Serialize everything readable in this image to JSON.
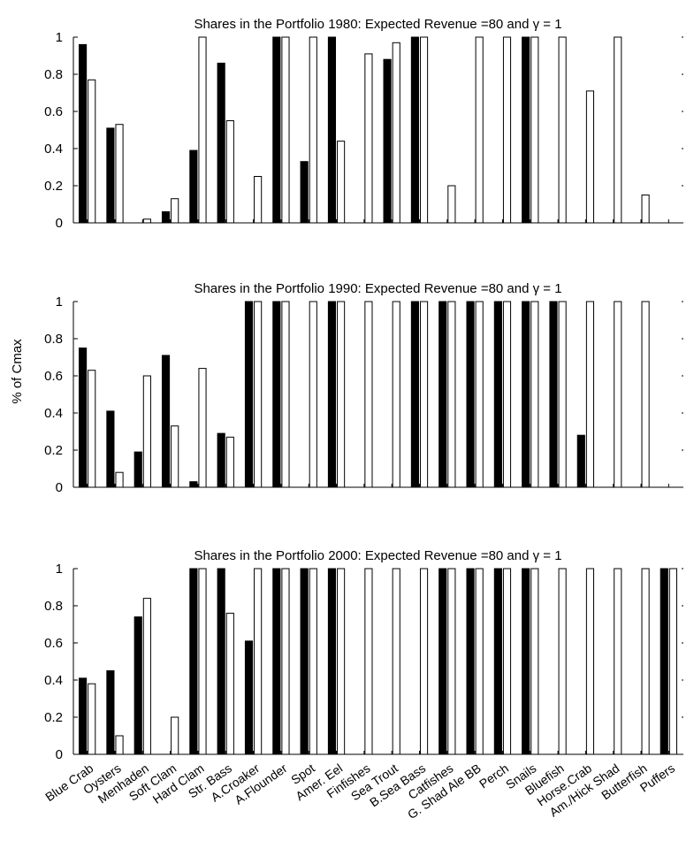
{
  "figure": {
    "ylabel": "% of Cmax"
  },
  "chart_data": [
    {
      "type": "bar",
      "title": "Shares in the Portfolio 1980: Expected Revenue =80 and γ = 1",
      "ylim": [
        0,
        1
      ],
      "yticks": [
        "0",
        "0.2",
        "0.4",
        "0.6",
        "0.8",
        "1"
      ],
      "categories": [
        "Blue Crab",
        "Oysters",
        "Menhaden",
        "Soft Clam",
        "Hard Clam",
        "Str. Bass",
        "A.Croaker",
        "A.Flounder",
        "Spot",
        "Amer. Eel",
        "Finfishes",
        "Sea Trout",
        "B.Sea Bass",
        "Catfishes",
        "G. Shad Ale BB",
        "Perch",
        "Snails",
        "Bluefish",
        "Horse.Crab",
        "Am./Hick Shad",
        "Butterfish",
        "Puffers"
      ],
      "series": [
        {
          "fill": "#000000",
          "values": [
            0.96,
            0.51,
            0.0,
            0.06,
            0.39,
            0.86,
            0.0,
            1.0,
            0.33,
            1.0,
            0.0,
            0.88,
            1.0,
            0.0,
            0.0,
            0.0,
            1.0,
            0.0,
            0.0,
            0.0,
            0.0,
            0.0
          ]
        },
        {
          "fill": "#ffffff",
          "values": [
            0.77,
            0.53,
            0.02,
            0.13,
            1.0,
            0.55,
            0.25,
            1.0,
            1.0,
            0.44,
            0.91,
            0.97,
            1.0,
            0.2,
            1.0,
            1.0,
            1.0,
            1.0,
            0.71,
            1.0,
            0.15,
            0.0
          ]
        }
      ]
    },
    {
      "type": "bar",
      "title": "Shares in the Portfolio 1990: Expected Revenue =80 and γ = 1",
      "ylim": [
        0,
        1
      ],
      "yticks": [
        "0",
        "0.2",
        "0.4",
        "0.6",
        "0.8",
        "1"
      ],
      "categories": [
        "Blue Crab",
        "Oysters",
        "Menhaden",
        "Soft Clam",
        "Hard Clam",
        "Str. Bass",
        "A.Croaker",
        "A.Flounder",
        "Spot",
        "Amer. Eel",
        "Finfishes",
        "Sea Trout",
        "B.Sea Bass",
        "Catfishes",
        "G. Shad Ale BB",
        "Perch",
        "Snails",
        "Bluefish",
        "Horse.Crab",
        "Am./Hick Shad",
        "Butterfish",
        "Puffers"
      ],
      "series": [
        {
          "fill": "#000000",
          "values": [
            0.75,
            0.41,
            0.19,
            0.71,
            0.03,
            0.29,
            1.0,
            1.0,
            0.0,
            1.0,
            0.0,
            0.0,
            1.0,
            1.0,
            1.0,
            1.0,
            1.0,
            1.0,
            0.28,
            0.0,
            0.0,
            0.0
          ]
        },
        {
          "fill": "#ffffff",
          "values": [
            0.63,
            0.08,
            0.6,
            0.33,
            0.64,
            0.27,
            1.0,
            1.0,
            1.0,
            1.0,
            1.0,
            1.0,
            1.0,
            1.0,
            1.0,
            1.0,
            1.0,
            1.0,
            1.0,
            1.0,
            1.0,
            0.0
          ]
        }
      ]
    },
    {
      "type": "bar",
      "title": "Shares in the Portfolio 2000: Expected Revenue =80 and γ = 1",
      "ylim": [
        0,
        1
      ],
      "yticks": [
        "0",
        "0.2",
        "0.4",
        "0.6",
        "0.8",
        "1"
      ],
      "categories": [
        "Blue Crab",
        "Oysters",
        "Menhaden",
        "Soft Clam",
        "Hard Clam",
        "Str. Bass",
        "A.Croaker",
        "A.Flounder",
        "Spot",
        "Amer. Eel",
        "Finfishes",
        "Sea Trout",
        "B.Sea Bass",
        "Catfishes",
        "G. Shad Ale BB",
        "Perch",
        "Snails",
        "Bluefish",
        "Horse.Crab",
        "Am./Hick Shad",
        "Butterfish",
        "Puffers"
      ],
      "series": [
        {
          "fill": "#000000",
          "values": [
            0.41,
            0.45,
            0.74,
            0.0,
            1.0,
            1.0,
            0.61,
            1.0,
            1.0,
            1.0,
            0.0,
            0.0,
            0.0,
            1.0,
            1.0,
            1.0,
            1.0,
            0.0,
            0.0,
            0.0,
            0.0,
            1.0
          ]
        },
        {
          "fill": "#ffffff",
          "values": [
            0.38,
            0.1,
            0.84,
            0.2,
            1.0,
            0.76,
            1.0,
            1.0,
            1.0,
            1.0,
            1.0,
            1.0,
            1.0,
            1.0,
            1.0,
            1.0,
            1.0,
            1.0,
            1.0,
            1.0,
            1.0,
            1.0
          ]
        }
      ]
    }
  ]
}
